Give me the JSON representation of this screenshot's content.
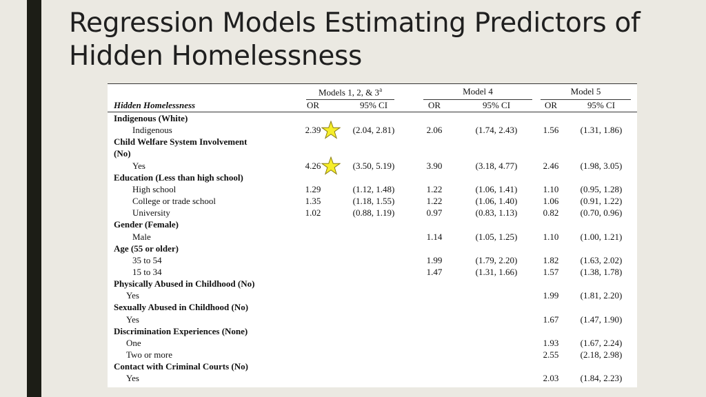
{
  "slide": {
    "title_line1": "Regression Models Estimating Predictors of",
    "title_line2": "Hidden Homelessness",
    "accent_bar_color": "#1c1d16",
    "background_color": "#ebe9e2"
  },
  "table": {
    "model_groups": [
      {
        "label": "Models 1, 2, & 3",
        "superscript": "a"
      },
      {
        "label": "Model 4",
        "superscript": ""
      },
      {
        "label": "Model 5",
        "superscript": ""
      }
    ],
    "dependent_label": "Hidden Homelessness",
    "or_header": "OR",
    "ci_header": "95% CI",
    "rows": [
      {
        "label": "Indigenous (White)",
        "style": "bold"
      },
      {
        "label": "Indigenous",
        "style": "ind1",
        "m1_or": "2.39",
        "m1_ci": "(2.04, 2.81)",
        "m4_or": "2.06",
        "m4_ci": "(1.74, 2.43)",
        "m5_or": "1.56",
        "m5_ci": "(1.31, 1.86)",
        "star": true
      },
      {
        "label": "Child Welfare System Involvement",
        "style": "bold"
      },
      {
        "label": "(No)",
        "style": "bold"
      },
      {
        "label": "Yes",
        "style": "ind1",
        "m1_or": "4.26",
        "m1_ci": "(3.50, 5.19)",
        "m4_or": "3.90",
        "m4_ci": "(3.18, 4.77)",
        "m5_or": "2.46",
        "m5_ci": "(1.98, 3.05)",
        "star": true
      },
      {
        "label": "Education (Less than high school)",
        "style": "bold"
      },
      {
        "label": "High school",
        "style": "ind1",
        "m1_or": "1.29",
        "m1_ci": "(1.12, 1.48)",
        "m4_or": "1.22",
        "m4_ci": "(1.06, 1.41)",
        "m5_or": "1.10",
        "m5_ci": "(0.95, 1.28)"
      },
      {
        "label": "College or trade school",
        "style": "ind1",
        "m1_or": "1.35",
        "m1_ci": "(1.18, 1.55)",
        "m4_or": "1.22",
        "m4_ci": "(1.06, 1.40)",
        "m5_or": "1.06",
        "m5_ci": "(0.91, 1.22)"
      },
      {
        "label": "University",
        "style": "ind1",
        "m1_or": "1.02",
        "m1_ci": "(0.88, 1.19)",
        "m4_or": "0.97",
        "m4_ci": "(0.83, 1.13)",
        "m5_or": "0.82",
        "m5_ci": "(0.70, 0.96)"
      },
      {
        "label": "Gender (Female)",
        "style": "bold"
      },
      {
        "label": "Male",
        "style": "ind1",
        "m4_or": "1.14",
        "m4_ci": "(1.05, 1.25)",
        "m5_or": "1.10",
        "m5_ci": "(1.00, 1.21)"
      },
      {
        "label": "Age (55 or older)",
        "style": "bold"
      },
      {
        "label": "35 to 54",
        "style": "ind1",
        "m4_or": "1.99",
        "m4_ci": "(1.79, 2.20)",
        "m5_or": "1.82",
        "m5_ci": "(1.63, 2.02)"
      },
      {
        "label": "15 to 34",
        "style": "ind1",
        "m4_or": "1.47",
        "m4_ci": "(1.31, 1.66)",
        "m5_or": "1.57",
        "m5_ci": "(1.38, 1.78)"
      },
      {
        "label": "Physically Abused in Childhood (No)",
        "style": "bold"
      },
      {
        "label": "Yes",
        "style": "ind2",
        "m5_or": "1.99",
        "m5_ci": "(1.81, 2.20)"
      },
      {
        "label": "Sexually Abused in Childhood (No)",
        "style": "bold"
      },
      {
        "label": "Yes",
        "style": "ind2",
        "m5_or": "1.67",
        "m5_ci": "(1.47, 1.90)"
      },
      {
        "label": "Discrimination Experiences (None)",
        "style": "bold"
      },
      {
        "label": "One",
        "style": "ind2",
        "m5_or": "1.93",
        "m5_ci": "(1.67, 2.24)"
      },
      {
        "label": "Two or more",
        "style": "ind2",
        "m5_or": "2.55",
        "m5_ci": "(2.18, 2.98)"
      },
      {
        "label": "Contact with Criminal Courts (No)",
        "style": "bold"
      },
      {
        "label": "Yes",
        "style": "ind2",
        "m5_or": "2.03",
        "m5_ci": "(1.84, 2.23)"
      }
    ],
    "star_color": "#f6ee2a"
  }
}
